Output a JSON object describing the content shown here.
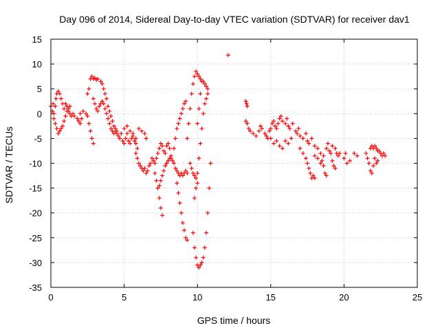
{
  "chart_data": {
    "type": "scatter",
    "title": "Day 096 of 2014, Sidereal Day-to-day VTEC variation (SDTVAR) for receiver dav1",
    "xlabel": "GPS time / hours",
    "ylabel": "SDTVAR / TECUs",
    "xlim": [
      0,
      25
    ],
    "ylim": [
      -35,
      15
    ],
    "xticks": [
      0,
      5,
      10,
      15,
      20,
      25
    ],
    "yticks": [
      -35,
      -30,
      -25,
      -20,
      -15,
      -10,
      -5,
      0,
      5,
      10,
      15
    ],
    "grid": true,
    "marker": "+",
    "color": "#ff0000",
    "series": [
      {
        "name": "SDTVAR",
        "points": [
          [
            0.0,
            1.5
          ],
          [
            0.1,
            0.5
          ],
          [
            0.15,
            2.0
          ],
          [
            0.2,
            0.0
          ],
          [
            0.3,
            1.5
          ],
          [
            0.35,
            3.0
          ],
          [
            0.4,
            4.0
          ],
          [
            0.5,
            4.5
          ],
          [
            0.6,
            4.0
          ],
          [
            0.7,
            3.0
          ],
          [
            0.8,
            2.0
          ],
          [
            0.9,
            1.0
          ],
          [
            0.2,
            -1.0
          ],
          [
            0.3,
            -2.0
          ],
          [
            0.4,
            -3.0
          ],
          [
            0.5,
            -4.0
          ],
          [
            0.6,
            -3.5
          ],
          [
            0.7,
            -3.0
          ],
          [
            0.8,
            -2.5
          ],
          [
            0.9,
            -1.5
          ],
          [
            1.0,
            -0.5
          ],
          [
            1.1,
            0.5
          ],
          [
            1.2,
            1.0
          ],
          [
            1.3,
            1.5
          ],
          [
            1.0,
            2.0
          ],
          [
            1.1,
            1.5
          ],
          [
            1.2,
            0.5
          ],
          [
            1.3,
            0.0
          ],
          [
            1.4,
            -0.5
          ],
          [
            1.5,
            0.0
          ],
          [
            1.6,
            -0.5
          ],
          [
            1.8,
            -1.0
          ],
          [
            1.9,
            -1.5
          ],
          [
            2.0,
            -2.0
          ],
          [
            2.1,
            -1.0
          ],
          [
            2.0,
            0.0
          ],
          [
            2.2,
            0.5
          ],
          [
            2.4,
            0.0
          ],
          [
            2.5,
            -0.5
          ],
          [
            2.6,
            -2.0
          ],
          [
            2.7,
            -3.5
          ],
          [
            2.8,
            -5.0
          ],
          [
            2.9,
            -6.0
          ],
          [
            2.5,
            4.0
          ],
          [
            2.6,
            5.0
          ],
          [
            2.7,
            7.0
          ],
          [
            2.8,
            7.5
          ],
          [
            2.9,
            7.0
          ],
          [
            3.0,
            7.2
          ],
          [
            3.1,
            6.8
          ],
          [
            3.2,
            7.0
          ],
          [
            2.9,
            3.0
          ],
          [
            3.0,
            2.0
          ],
          [
            3.1,
            1.0
          ],
          [
            3.2,
            0.5
          ],
          [
            3.3,
            1.5
          ],
          [
            3.4,
            2.0
          ],
          [
            3.5,
            2.5
          ],
          [
            3.6,
            2.0
          ],
          [
            3.7,
            1.0
          ],
          [
            3.8,
            0.0
          ],
          [
            3.9,
            -1.0
          ],
          [
            4.0,
            -2.0
          ],
          [
            4.1,
            -3.0
          ],
          [
            4.2,
            -3.5
          ],
          [
            4.3,
            -4.0
          ],
          [
            4.4,
            -3.5
          ],
          [
            4.5,
            -4.0
          ],
          [
            3.4,
            6.5
          ],
          [
            3.5,
            6.0
          ],
          [
            3.6,
            5.0
          ],
          [
            3.7,
            4.0
          ],
          [
            3.8,
            3.0
          ],
          [
            3.9,
            1.5
          ],
          [
            4.0,
            0.5
          ],
          [
            4.1,
            -0.5
          ],
          [
            4.2,
            -1.5
          ],
          [
            4.3,
            -2.5
          ],
          [
            4.4,
            -3.0
          ],
          [
            4.5,
            -3.5
          ],
          [
            4.6,
            -4.5
          ],
          [
            4.7,
            -5.0
          ],
          [
            4.8,
            -4.0
          ],
          [
            4.9,
            -5.5
          ],
          [
            5.0,
            -6.0
          ],
          [
            5.1,
            -5.0
          ],
          [
            5.2,
            -4.0
          ],
          [
            5.3,
            -5.5
          ],
          [
            5.4,
            -6.0
          ],
          [
            5.5,
            -5.0
          ],
          [
            5.6,
            -4.5
          ],
          [
            5.7,
            -5.5
          ],
          [
            5.8,
            -6.0
          ],
          [
            5.9,
            -7.0
          ],
          [
            5.0,
            -3.0
          ],
          [
            5.2,
            -2.5
          ],
          [
            5.4,
            -3.5
          ],
          [
            5.6,
            -4.0
          ],
          [
            5.8,
            -5.0
          ],
          [
            6.0,
            -3.0
          ],
          [
            6.2,
            -3.5
          ],
          [
            6.4,
            -4.0
          ],
          [
            6.5,
            -5.0
          ],
          [
            5.8,
            -8.0
          ],
          [
            5.9,
            -9.0
          ],
          [
            6.0,
            -10.0
          ],
          [
            6.1,
            -10.5
          ],
          [
            6.2,
            -11.0
          ],
          [
            6.3,
            -11.5
          ],
          [
            6.4,
            -11.0
          ],
          [
            6.5,
            -12.0
          ],
          [
            6.6,
            -11.5
          ],
          [
            6.7,
            -10.5
          ],
          [
            6.8,
            -10.0
          ],
          [
            6.9,
            -9.0
          ],
          [
            7.0,
            -9.5
          ],
          [
            7.1,
            -10.0
          ],
          [
            7.2,
            -9.0
          ],
          [
            7.3,
            -8.0
          ],
          [
            7.4,
            -7.0
          ],
          [
            7.5,
            -6.0
          ],
          [
            7.6,
            -6.5
          ],
          [
            7.7,
            -7.5
          ],
          [
            7.8,
            -8.0
          ],
          [
            7.9,
            -6.5
          ],
          [
            8.0,
            -6.0
          ],
          [
            8.1,
            -7.0
          ],
          [
            7.1,
            -12.0
          ],
          [
            7.2,
            -13.5
          ],
          [
            7.3,
            -15.0
          ],
          [
            7.4,
            -14.5
          ],
          [
            7.5,
            -13.5
          ],
          [
            7.6,
            -12.5
          ],
          [
            7.7,
            -11.5
          ],
          [
            7.8,
            -10.5
          ],
          [
            7.9,
            -10.0
          ],
          [
            8.0,
            -9.5
          ],
          [
            8.1,
            -9.0
          ],
          [
            7.4,
            -17.0
          ],
          [
            7.5,
            -19.0
          ],
          [
            7.6,
            -20.5
          ],
          [
            8.2,
            -8.5
          ],
          [
            8.3,
            -9.5
          ],
          [
            8.4,
            -10.0
          ],
          [
            8.5,
            -11.0
          ],
          [
            8.6,
            -11.5
          ],
          [
            8.7,
            -12.0
          ],
          [
            8.8,
            -12.5
          ],
          [
            8.9,
            -12.0
          ],
          [
            9.0,
            -12.5
          ],
          [
            9.1,
            -12.0
          ],
          [
            9.2,
            -11.5
          ],
          [
            9.3,
            -12.0
          ],
          [
            8.2,
            -9.0
          ],
          [
            8.4,
            -7.0
          ],
          [
            8.5,
            -5.0
          ],
          [
            8.6,
            -3.0
          ],
          [
            8.7,
            -2.0
          ],
          [
            8.8,
            -1.0
          ],
          [
            8.9,
            0.0
          ],
          [
            9.0,
            1.0
          ],
          [
            9.1,
            2.0
          ],
          [
            9.2,
            2.5
          ],
          [
            8.6,
            -14.0
          ],
          [
            8.7,
            -16.0
          ],
          [
            8.8,
            -18.0
          ],
          [
            8.9,
            -20.0
          ],
          [
            9.0,
            -22.0
          ],
          [
            9.1,
            -23.5
          ],
          [
            9.2,
            -25.0
          ],
          [
            9.3,
            -25.5
          ],
          [
            9.3,
            -5.0
          ],
          [
            9.4,
            -2.0
          ],
          [
            9.5,
            1.0
          ],
          [
            9.6,
            4.0
          ],
          [
            9.7,
            6.0
          ],
          [
            9.8,
            7.5
          ],
          [
            9.9,
            8.5
          ],
          [
            10.0,
            8.0
          ],
          [
            10.1,
            7.5
          ],
          [
            10.2,
            7.0
          ],
          [
            10.3,
            6.5
          ],
          [
            10.4,
            6.5
          ],
          [
            10.5,
            6.0
          ],
          [
            10.6,
            5.5
          ],
          [
            10.7,
            5.0
          ],
          [
            9.5,
            -10.0
          ],
          [
            9.6,
            -11.0
          ],
          [
            9.7,
            -12.0
          ],
          [
            9.8,
            -12.5
          ],
          [
            9.9,
            -13.0
          ],
          [
            10.0,
            -14.0
          ],
          [
            9.7,
            -24.0
          ],
          [
            9.8,
            -27.0
          ],
          [
            9.9,
            -29.0
          ],
          [
            10.0,
            -30.5
          ],
          [
            10.1,
            -31.0
          ],
          [
            10.2,
            -30.5
          ],
          [
            10.3,
            -30.0
          ],
          [
            10.4,
            -29.0
          ],
          [
            10.5,
            -27.0
          ],
          [
            10.6,
            -24.0
          ],
          [
            10.7,
            -20.0
          ],
          [
            10.8,
            -15.0
          ],
          [
            10.9,
            -10.0
          ],
          [
            9.8,
            -17.0
          ],
          [
            9.9,
            -15.0
          ],
          [
            10.0,
            -12.0
          ],
          [
            10.1,
            -9.0
          ],
          [
            10.2,
            -6.0
          ],
          [
            10.3,
            -3.0
          ],
          [
            10.4,
            0.0
          ],
          [
            10.5,
            2.0
          ],
          [
            10.6,
            3.0
          ],
          [
            10.7,
            4.0
          ],
          [
            10.0,
            -2.0
          ],
          [
            10.1,
            1.0
          ],
          [
            10.2,
            4.0
          ],
          [
            12.1,
            11.8
          ],
          [
            13.3,
            2.5
          ],
          [
            13.35,
            2.0
          ],
          [
            13.4,
            1.5
          ],
          [
            13.3,
            -1.5
          ],
          [
            13.4,
            -2.0
          ],
          [
            13.5,
            -3.0
          ],
          [
            13.6,
            -3.5
          ],
          [
            13.8,
            -4.0
          ],
          [
            14.0,
            -4.5
          ],
          [
            14.2,
            -3.5
          ],
          [
            14.3,
            -2.5
          ],
          [
            14.4,
            -3.0
          ],
          [
            14.6,
            -4.0
          ],
          [
            14.7,
            -4.5
          ],
          [
            14.8,
            -5.0
          ],
          [
            14.9,
            -3.5
          ],
          [
            15.0,
            -3.0
          ],
          [
            15.1,
            -2.0
          ],
          [
            15.2,
            -1.5
          ],
          [
            15.3,
            -2.5
          ],
          [
            15.4,
            -3.0
          ],
          [
            15.5,
            -2.0
          ],
          [
            15.6,
            -1.0
          ],
          [
            15.7,
            -0.5
          ],
          [
            15.8,
            -1.5
          ],
          [
            15.0,
            -5.0
          ],
          [
            15.2,
            -6.0
          ],
          [
            15.4,
            -5.5
          ],
          [
            15.6,
            -6.5
          ],
          [
            15.8,
            -7.0
          ],
          [
            16.0,
            -5.5
          ],
          [
            16.2,
            -6.0
          ],
          [
            16.4,
            -5.0
          ],
          [
            16.0,
            -2.0
          ],
          [
            16.1,
            -1.0
          ],
          [
            16.2,
            -2.5
          ],
          [
            16.3,
            -3.0
          ],
          [
            16.5,
            -2.0
          ],
          [
            16.7,
            -3.5
          ],
          [
            16.8,
            -4.0
          ],
          [
            16.9,
            -3.0
          ],
          [
            17.0,
            -4.5
          ],
          [
            17.2,
            -5.0
          ],
          [
            17.4,
            -4.0
          ],
          [
            17.5,
            -5.5
          ],
          [
            17.0,
            -7.0
          ],
          [
            17.2,
            -8.0
          ],
          [
            17.4,
            -9.0
          ],
          [
            17.5,
            -10.0
          ],
          [
            17.6,
            -11.0
          ],
          [
            17.7,
            -12.0
          ],
          [
            17.8,
            -13.0
          ],
          [
            17.9,
            -12.5
          ],
          [
            18.0,
            -13.0
          ],
          [
            17.6,
            -6.0
          ],
          [
            17.8,
            -5.0
          ],
          [
            18.0,
            -6.5
          ],
          [
            18.2,
            -7.0
          ],
          [
            18.4,
            -8.0
          ],
          [
            18.5,
            -9.5
          ],
          [
            18.6,
            -10.5
          ],
          [
            18.7,
            -12.0
          ],
          [
            18.8,
            -12.5
          ],
          [
            18.0,
            -8.5
          ],
          [
            18.2,
            -9.0
          ],
          [
            18.4,
            -10.0
          ],
          [
            18.6,
            -8.5
          ],
          [
            18.8,
            -7.0
          ],
          [
            18.9,
            -6.0
          ],
          [
            19.0,
            -7.5
          ],
          [
            19.1,
            -8.0
          ],
          [
            19.2,
            -9.5
          ],
          [
            19.3,
            -10.5
          ],
          [
            19.4,
            -11.0
          ],
          [
            19.2,
            -6.5
          ],
          [
            19.4,
            -7.0
          ],
          [
            19.5,
            -8.0
          ],
          [
            19.6,
            -8.5
          ],
          [
            19.7,
            -8.0
          ],
          [
            20.0,
            -9.0
          ],
          [
            20.1,
            -8.0
          ],
          [
            20.2,
            -10.0
          ],
          [
            20.4,
            -9.5
          ],
          [
            20.7,
            -8.0
          ],
          [
            20.9,
            -8.5
          ],
          [
            21.5,
            -8.0
          ],
          [
            21.6,
            -9.0
          ],
          [
            21.7,
            -10.0
          ],
          [
            21.8,
            -11.5
          ],
          [
            21.9,
            -12.0
          ],
          [
            22.0,
            -10.5
          ],
          [
            22.1,
            -9.0
          ],
          [
            22.2,
            -10.0
          ],
          [
            22.3,
            -9.5
          ],
          [
            21.8,
            -7.0
          ],
          [
            21.9,
            -6.5
          ],
          [
            22.0,
            -7.0
          ],
          [
            22.1,
            -6.5
          ],
          [
            22.2,
            -7.0
          ],
          [
            22.3,
            -7.5
          ],
          [
            22.4,
            -7.5
          ],
          [
            22.5,
            -8.0
          ],
          [
            22.6,
            -8.5
          ],
          [
            22.7,
            -8.0
          ],
          [
            22.8,
            -8.5
          ]
        ]
      }
    ]
  }
}
